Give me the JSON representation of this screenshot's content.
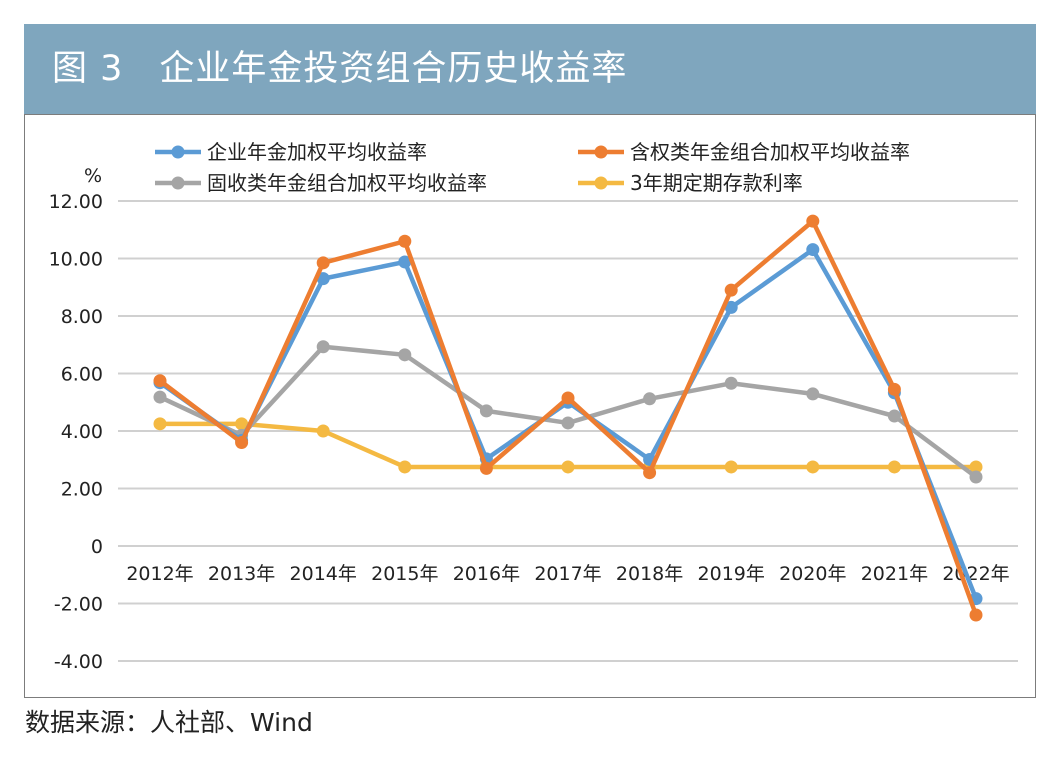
{
  "header": {
    "title": "图 3　企业年金投资组合历史收益率"
  },
  "source_note": "数据来源：人社部、Wind",
  "chart_data": {
    "type": "line",
    "title": "企业年金投资组合历史收益率",
    "ylabel": "%",
    "xlabel": "",
    "ylim": [
      -4,
      12
    ],
    "yticks": [
      "-4.00",
      "-2.00",
      "0",
      "2.00",
      "4.00",
      "6.00",
      "8.00",
      "10.00",
      "12.00"
    ],
    "ytick_values": [
      -4,
      -2,
      0,
      2,
      4,
      6,
      8,
      10,
      12
    ],
    "grid": true,
    "legend_position": "top",
    "categories": [
      "2012年",
      "2013年",
      "2014年",
      "2015年",
      "2016年",
      "2017年",
      "2018年",
      "2019年",
      "2020年",
      "2021年",
      "2022年"
    ],
    "series": [
      {
        "name": "企业年金加权平均收益率",
        "color": "#5b9bd5",
        "values": [
          5.68,
          3.67,
          9.3,
          9.88,
          3.03,
          5.0,
          3.01,
          8.3,
          10.31,
          5.33,
          -1.83
        ]
      },
      {
        "name": "含权类年金组合加权平均收益率",
        "color": "#ed7d31",
        "values": [
          5.75,
          3.6,
          9.85,
          10.6,
          2.7,
          5.15,
          2.55,
          8.9,
          11.3,
          5.45,
          -2.4
        ]
      },
      {
        "name": "固收类年金组合加权平均收益率",
        "color": "#a5a5a5",
        "values": [
          5.18,
          3.85,
          6.93,
          6.65,
          4.7,
          4.28,
          5.12,
          5.66,
          5.29,
          4.52,
          2.4
        ]
      },
      {
        "name": "3年期定期存款利率",
        "color": "#f4b942",
        "values": [
          4.25,
          4.25,
          4.0,
          2.75,
          2.75,
          2.75,
          2.75,
          2.75,
          2.75,
          2.75,
          2.75
        ]
      }
    ]
  }
}
